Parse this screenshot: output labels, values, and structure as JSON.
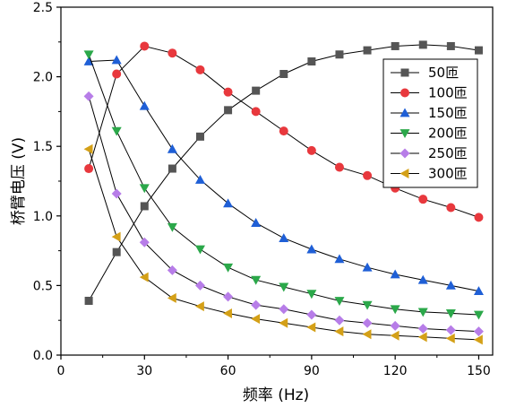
{
  "chart_data": {
    "type": "line",
    "title": "",
    "xlabel": "频率 (Hz)",
    "ylabel": "桥臂电压 (V)",
    "xlim": [
      0,
      155
    ],
    "ylim": [
      0,
      2.5
    ],
    "xticks": [
      0,
      30,
      60,
      90,
      120,
      150
    ],
    "yticks": [
      0.0,
      0.5,
      1.0,
      1.5,
      2.0,
      2.5
    ],
    "xtick_labels": [
      "0",
      "30",
      "60",
      "90",
      "120",
      "150"
    ],
    "ytick_labels": [
      "0.0",
      "0.5",
      "1.0",
      "1.5",
      "2.0",
      "2.5"
    ],
    "grid": false,
    "legend_position": "top-right",
    "x": [
      10,
      20,
      30,
      40,
      50,
      60,
      70,
      80,
      90,
      100,
      110,
      120,
      130,
      140,
      150
    ],
    "series": [
      {
        "name": "50匝",
        "marker": "square",
        "color": "#555555",
        "values": [
          0.39,
          0.74,
          1.07,
          1.34,
          1.57,
          1.76,
          1.9,
          2.02,
          2.11,
          2.16,
          2.19,
          2.22,
          2.23,
          2.22,
          2.19
        ]
      },
      {
        "name": "100匝",
        "marker": "circle",
        "color": "#e8383d",
        "values": [
          1.34,
          2.02,
          2.22,
          2.17,
          2.05,
          1.89,
          1.75,
          1.61,
          1.47,
          1.35,
          1.29,
          1.2,
          1.12,
          1.06,
          0.99
        ]
      },
      {
        "name": "150匝",
        "marker": "triangle-up",
        "color": "#1f5fd6",
        "values": [
          2.11,
          2.12,
          1.79,
          1.48,
          1.26,
          1.09,
          0.95,
          0.84,
          0.76,
          0.69,
          0.63,
          0.58,
          0.54,
          0.5,
          0.46
        ]
      },
      {
        "name": "200匝",
        "marker": "triangle-down",
        "color": "#2ba84a",
        "values": [
          2.16,
          1.61,
          1.2,
          0.92,
          0.76,
          0.63,
          0.54,
          0.49,
          0.44,
          0.39,
          0.36,
          0.33,
          0.31,
          0.3,
          0.29
        ]
      },
      {
        "name": "250匝",
        "marker": "diamond",
        "color": "#b77de8",
        "values": [
          1.86,
          1.16,
          0.81,
          0.61,
          0.5,
          0.42,
          0.36,
          0.33,
          0.29,
          0.25,
          0.23,
          0.21,
          0.19,
          0.18,
          0.17
        ]
      },
      {
        "name": "300匝",
        "marker": "triangle-left",
        "color": "#d4a017",
        "values": [
          1.48,
          0.85,
          0.56,
          0.41,
          0.35,
          0.3,
          0.26,
          0.23,
          0.2,
          0.17,
          0.15,
          0.14,
          0.13,
          0.12,
          0.11
        ]
      }
    ]
  }
}
